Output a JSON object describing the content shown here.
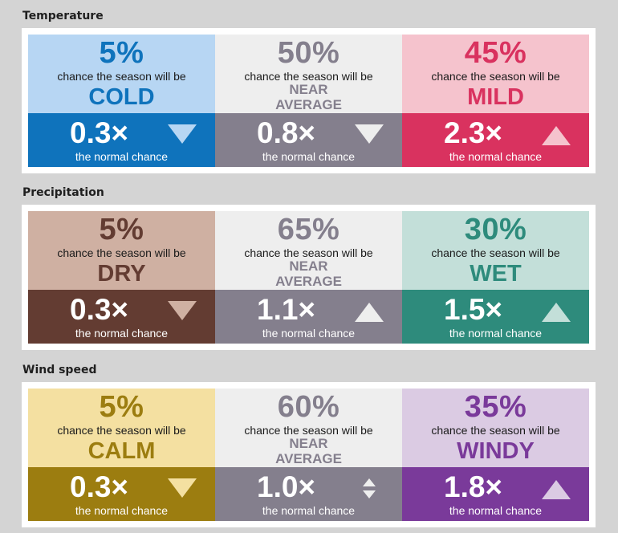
{
  "common": {
    "chance_text": "chance the season will be",
    "normal_text": "the normal chance"
  },
  "colors": {
    "cold_light": "#b7d6f3",
    "cold_dark": "#0f73bc",
    "cold_text": "#0f73bc",
    "avg_light": "#eeeeee",
    "avg_dark": "#847f8d",
    "avg_text": "#847f8d",
    "mild_light": "#f5c3cd",
    "mild_dark": "#d9325f",
    "mild_text": "#d9325f",
    "dry_light": "#cfb0a2",
    "dry_dark": "#633c32",
    "dry_text": "#633c32",
    "wet_light": "#c3dfd9",
    "wet_dark": "#2e8b7c",
    "wet_text": "#2e8b7c",
    "calm_light": "#f4e0a1",
    "calm_dark": "#9c7d10",
    "calm_text": "#9c7d10",
    "windy_light": "#dbcbe3",
    "windy_dark": "#7a3a9a",
    "windy_text": "#7a3a9a"
  },
  "sections": [
    {
      "title": "Temperature",
      "cells": [
        {
          "percent": "5%",
          "category": "COLD",
          "multiplier": "0.3×",
          "arrow": "down-triangle-icon"
        },
        {
          "percent": "50%",
          "category_line1": "NEAR",
          "category_line2": "AVERAGE",
          "multiplier": "0.8×",
          "arrow": "down-triangle-icon"
        },
        {
          "percent": "45%",
          "category": "MILD",
          "multiplier": "2.3×",
          "arrow": "up-triangle-icon"
        }
      ]
    },
    {
      "title": "Precipitation",
      "cells": [
        {
          "percent": "5%",
          "category": "DRY",
          "multiplier": "0.3×",
          "arrow": "down-triangle-icon"
        },
        {
          "percent": "65%",
          "category_line1": "NEAR",
          "category_line2": "AVERAGE",
          "multiplier": "1.1×",
          "arrow": "up-triangle-icon"
        },
        {
          "percent": "30%",
          "category": "WET",
          "multiplier": "1.5×",
          "arrow": "up-triangle-icon"
        }
      ]
    },
    {
      "title": "Wind speed",
      "cells": [
        {
          "percent": "5%",
          "category": "CALM",
          "multiplier": "0.3×",
          "arrow": "down-triangle-icon"
        },
        {
          "percent": "60%",
          "category_line1": "NEAR",
          "category_line2": "AVERAGE",
          "multiplier": "1.0×",
          "arrow": "up-down-icon"
        },
        {
          "percent": "35%",
          "category": "WINDY",
          "multiplier": "1.8×",
          "arrow": "up-triangle-icon"
        }
      ]
    }
  ]
}
